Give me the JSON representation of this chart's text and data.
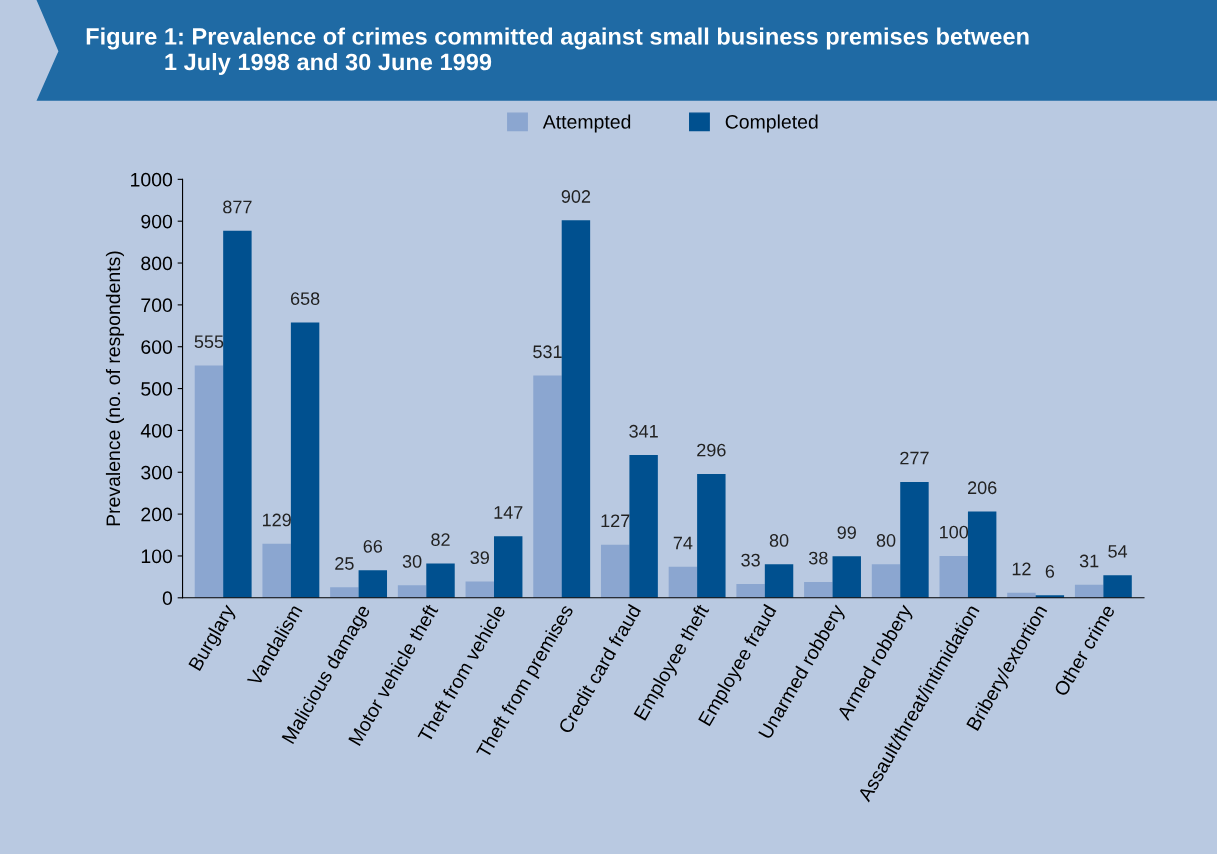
{
  "chart_data": {
    "type": "bar",
    "title": "Figure 1: Prevalence of crimes committed against small business premises between\n            1 July 1998 and 30 June 1999",
    "ylabel": "Prevalence (no. of respondents)",
    "categories": [
      "Burglary",
      "Vandalism",
      "Malicious damage",
      "Motor vehicle theft",
      "Theft from vehicle",
      "Theft from premises",
      "Credit card fraud",
      "Employee theft",
      "Employee fraud",
      "Unarmed robbery",
      "Armed robbery",
      "Assault/threat/intimidation",
      "Bribery/extortion",
      "Other crime"
    ],
    "series": [
      {
        "name": "Attempted",
        "color": "#8ba6d0",
        "values": [
          555,
          129,
          25,
          30,
          39,
          531,
          127,
          74,
          33,
          38,
          80,
          100,
          12,
          31
        ]
      },
      {
        "name": "Completed",
        "color": "#00508f",
        "values": [
          877,
          658,
          66,
          82,
          147,
          902,
          341,
          296,
          80,
          99,
          277,
          206,
          6,
          54
        ]
      }
    ],
    "ylim": [
      0,
      1000
    ],
    "yticks": [
      0,
      100,
      200,
      300,
      400,
      500,
      600,
      700,
      800,
      900,
      1000
    ],
    "data_labels": true,
    "grid": false,
    "legend": "top"
  }
}
